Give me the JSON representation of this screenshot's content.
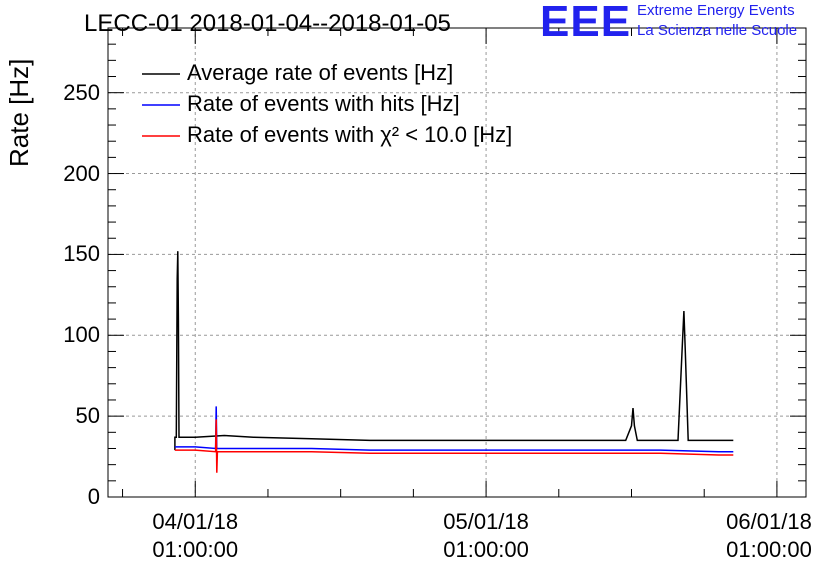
{
  "header": {
    "title": "LECC-01 2018-01-04--2018-01-05",
    "logo_text": "EEE",
    "logo_line1": "Extreme Energy Events",
    "logo_line2": "La Scienza nelle Scuole"
  },
  "colors": {
    "logo": "#2222ee",
    "average": "#000000",
    "hits": "#0000ff",
    "chi2": "#ff0000"
  },
  "chart_data": {
    "type": "line",
    "title": "LECC-01 2018-01-04--2018-01-05",
    "ylabel": "Rate [Hz]",
    "xlabel": "",
    "xlim": [
      -0.3,
      2.1
    ],
    "ylim": [
      0,
      290
    ],
    "x_tick_values": [
      0,
      1,
      2
    ],
    "x_tick_labels": [
      {
        "date": "04/01/18",
        "time": "01:00:00"
      },
      {
        "date": "05/01/18",
        "time": "01:00:00"
      },
      {
        "date": "06/01/18",
        "time": "01:00:00"
      }
    ],
    "y_ticks": [
      0,
      50,
      100,
      150,
      200,
      250
    ],
    "grid": true,
    "legend_position": "top-left",
    "series": [
      {
        "name": "Average rate of events [Hz]",
        "color": "#000000",
        "points": [
          [
            -0.07,
            29
          ],
          [
            -0.07,
            37
          ],
          [
            -0.065,
            37
          ],
          [
            -0.062,
            135
          ],
          [
            -0.06,
            152
          ],
          [
            -0.058,
            110
          ],
          [
            -0.056,
            37
          ],
          [
            0.0,
            37
          ],
          [
            0.1,
            38
          ],
          [
            0.2,
            37
          ],
          [
            0.4,
            36
          ],
          [
            0.6,
            35
          ],
          [
            0.8,
            35
          ],
          [
            1.0,
            35
          ],
          [
            1.2,
            35
          ],
          [
            1.4,
            35
          ],
          [
            1.48,
            35
          ],
          [
            1.5,
            44
          ],
          [
            1.505,
            55
          ],
          [
            1.51,
            44
          ],
          [
            1.52,
            35
          ],
          [
            1.6,
            35
          ],
          [
            1.66,
            35
          ],
          [
            1.675,
            95
          ],
          [
            1.68,
            115
          ],
          [
            1.685,
            90
          ],
          [
            1.695,
            35
          ],
          [
            1.75,
            35
          ],
          [
            1.85,
            35
          ]
        ]
      },
      {
        "name": "Rate of events with hits [Hz]",
        "color": "#0000ff",
        "points": [
          [
            -0.07,
            31
          ],
          [
            0.0,
            31
          ],
          [
            0.07,
            30
          ],
          [
            0.072,
            56
          ],
          [
            0.074,
            30
          ],
          [
            0.2,
            30
          ],
          [
            0.4,
            30
          ],
          [
            0.6,
            29
          ],
          [
            0.8,
            29
          ],
          [
            1.0,
            29
          ],
          [
            1.2,
            29
          ],
          [
            1.4,
            29
          ],
          [
            1.6,
            29
          ],
          [
            1.8,
            28
          ],
          [
            1.85,
            28
          ]
        ]
      },
      {
        "name": "Rate of events with χ² < 10.0 [Hz]",
        "color": "#ff0000",
        "points": [
          [
            -0.07,
            29
          ],
          [
            0.0,
            29
          ],
          [
            0.07,
            28
          ],
          [
            0.072,
            48
          ],
          [
            0.074,
            15
          ],
          [
            0.076,
            28
          ],
          [
            0.2,
            28
          ],
          [
            0.4,
            28
          ],
          [
            0.6,
            27
          ],
          [
            0.8,
            27
          ],
          [
            1.0,
            27
          ],
          [
            1.2,
            27
          ],
          [
            1.4,
            27
          ],
          [
            1.6,
            27
          ],
          [
            1.8,
            26
          ],
          [
            1.85,
            26
          ]
        ]
      }
    ]
  }
}
